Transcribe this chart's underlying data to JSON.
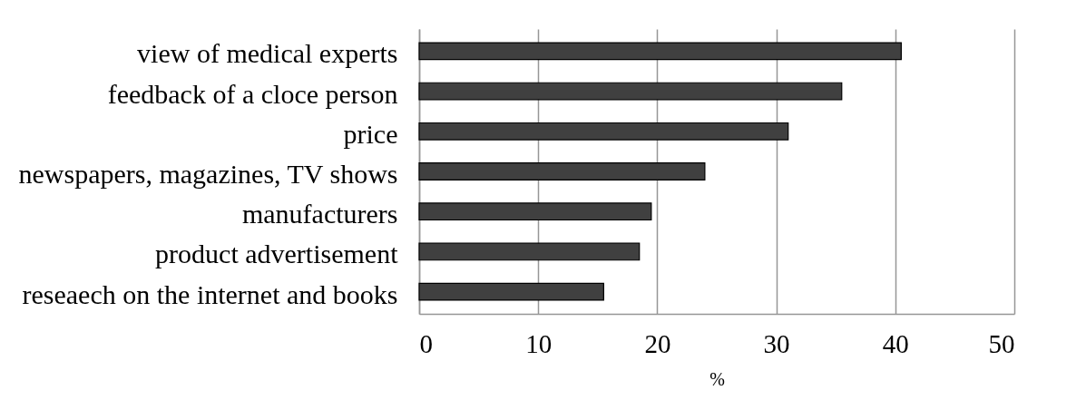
{
  "chart_data": {
    "type": "bar",
    "orientation": "horizontal",
    "xlabel": "%",
    "categories": [
      "view of medical experts",
      "feedback of a cloce person",
      "price",
      "newspapers, magazines, TV shows",
      "manufacturers",
      "product advertisement",
      "reseaech on the internet and books"
    ],
    "values": [
      40.5,
      35.5,
      31,
      24,
      19.5,
      18.5,
      15.5
    ],
    "color": "#404040",
    "xlim": [
      0,
      50
    ],
    "xticks": [
      0,
      10,
      20,
      30,
      40,
      50
    ],
    "grid": "x"
  }
}
